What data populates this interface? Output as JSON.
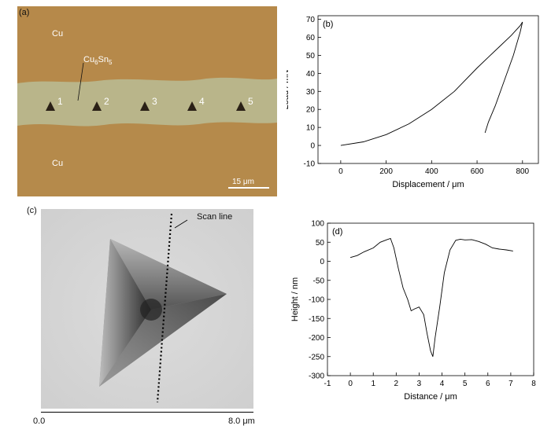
{
  "panels": {
    "a": {
      "tag": "(a)",
      "cu_top": "Cu",
      "cu_bottom": "Cu",
      "imc_label_main1": "Cu",
      "imc_label_sub1": "6",
      "imc_label_main2": "Sn",
      "imc_label_sub2": "5",
      "indents": [
        "1",
        "2",
        "3",
        "4",
        "5"
      ],
      "scale_bar": "15 μm",
      "colors": {
        "copper": "#b58a4b",
        "imc": "#b9b58a",
        "indent": "#2a2016"
      }
    },
    "c": {
      "tag": "(c)",
      "scan_label": "Scan line",
      "axis_start": "0.0",
      "axis_end": "8.0 μm"
    }
  },
  "chart_data": [
    {
      "id": "b",
      "type": "line",
      "tag": "(b)",
      "xlabel": "Displacement / μm",
      "ylabel": "Load / mN",
      "xlim": [
        -100,
        870
      ],
      "ylim": [
        -10,
        72
      ],
      "xticks": [
        0,
        200,
        400,
        600,
        800
      ],
      "yticks": [
        -10,
        0,
        10,
        20,
        30,
        40,
        50,
        60,
        70
      ],
      "series": [
        {
          "x": [
            0,
            100,
            200,
            300,
            400,
            500,
            600,
            650,
            700,
            750,
            790,
            800
          ],
          "y": [
            0,
            2,
            6,
            12,
            20,
            30,
            43,
            49,
            55,
            61,
            66.5,
            68.5
          ]
        },
        {
          "x": [
            800,
            790,
            760,
            720,
            680,
            650,
            635
          ],
          "y": [
            68.5,
            63,
            50,
            36,
            22,
            13,
            7
          ]
        }
      ]
    },
    {
      "id": "d",
      "type": "line",
      "tag": "(d)",
      "xlabel": "Distance / μm",
      "ylabel": "Height / nm",
      "xlim": [
        -1,
        8
      ],
      "ylim": [
        -300,
        100
      ],
      "xticks": [
        -1,
        0,
        1,
        2,
        3,
        4,
        5,
        6,
        7,
        8
      ],
      "yticks": [
        -300,
        -250,
        -200,
        -150,
        -100,
        -50,
        0,
        50,
        100
      ],
      "series": [
        {
          "x": [
            0,
            0.3,
            0.6,
            1.0,
            1.3,
            1.6,
            1.75,
            1.9,
            2.1,
            2.3,
            2.5,
            2.65,
            2.8,
            3.0,
            3.2,
            3.35,
            3.5,
            3.6,
            3.7,
            3.9,
            4.1,
            4.35,
            4.6,
            4.8,
            5.0,
            5.3,
            5.6,
            5.9,
            6.2,
            6.5,
            6.8,
            7.1
          ],
          "y": [
            10,
            15,
            25,
            35,
            50,
            57,
            60,
            35,
            -20,
            -70,
            -100,
            -130,
            -125,
            -120,
            -140,
            -190,
            -235,
            -250,
            -200,
            -120,
            -30,
            30,
            55,
            58,
            56,
            57,
            52,
            45,
            35,
            32,
            30,
            27
          ]
        }
      ]
    }
  ]
}
